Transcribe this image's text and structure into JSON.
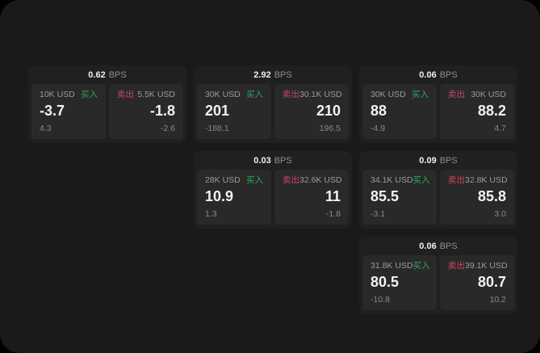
{
  "labels": {
    "bps_unit": "BPS",
    "buy": "买入",
    "sell": "卖出"
  },
  "colors": {
    "buy_green": "#3ca066",
    "sell_red": "#c04a62",
    "page_background": "#1a1a1a",
    "card_background": "#202020",
    "panel_background": "#292929"
  },
  "cards": [
    {
      "bps": "0.62",
      "col": 1,
      "row": 1,
      "buy": {
        "size": "10K USD",
        "price": "-3.7",
        "delta": "4.3"
      },
      "sell": {
        "size": "5.5K USD",
        "price": "-1.8",
        "delta": "-2.6"
      }
    },
    {
      "bps": "2.92",
      "col": 2,
      "row": 1,
      "buy": {
        "size": "30K USD",
        "price": "201",
        "delta": "-188.1"
      },
      "sell": {
        "size": "30.1K USD",
        "price": "210",
        "delta": "196.5"
      }
    },
    {
      "bps": "0.06",
      "col": 3,
      "row": 1,
      "buy": {
        "size": "30K USD",
        "price": "88",
        "delta": "-4.9"
      },
      "sell": {
        "size": "30K USD",
        "price": "88.2",
        "delta": "4.7"
      }
    },
    {
      "bps": "0.03",
      "col": 2,
      "row": 2,
      "buy": {
        "size": "28K USD",
        "price": "10.9",
        "delta": "1.3"
      },
      "sell": {
        "size": "32.6K USD",
        "price": "11",
        "delta": "-1.8"
      }
    },
    {
      "bps": "0.09",
      "col": 3,
      "row": 2,
      "buy": {
        "size": "34.1K USD",
        "price": "85.5",
        "delta": "-3.1"
      },
      "sell": {
        "size": "32.8K USD",
        "price": "85.8",
        "delta": "3.0"
      }
    },
    {
      "bps": "0.06",
      "col": 3,
      "row": 3,
      "buy": {
        "size": "31.8K USD",
        "price": "80.5",
        "delta": "-10.8"
      },
      "sell": {
        "size": "39.1K USD",
        "price": "80.7",
        "delta": "10.2"
      }
    }
  ]
}
